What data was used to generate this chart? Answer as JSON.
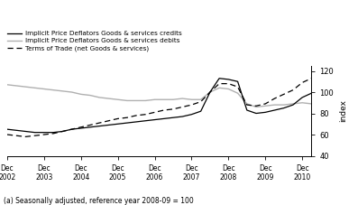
{
  "ylabel": "index",
  "footnote": "(a) Seasonally adjusted, reference year 2008-09 = 100",
  "ylim": [
    40,
    125
  ],
  "yticks": [
    40,
    60,
    80,
    100,
    120
  ],
  "xlabel_years": [
    "Dec\n2002",
    "Dec\n2003",
    "Dec\n2004",
    "Dec\n2005",
    "Dec\n2006",
    "Dec\n2007",
    "Dec\n2008",
    "Dec\n2009",
    "Dec\n2010"
  ],
  "xtick_positions": [
    0,
    4,
    8,
    12,
    16,
    20,
    24,
    28,
    32
  ],
  "credits_color": "#000000",
  "debits_color": "#b0b0b0",
  "tot_color": "#000000",
  "credits_label": "Implicit Price Deflators Goods & services credits",
  "debits_label": "Implicit Price Deflators Goods & services debits",
  "tot_label": "Terms of Trade (net Goods & services)",
  "credits": [
    65,
    64,
    63,
    62,
    62,
    62,
    63,
    65,
    66,
    67,
    68,
    69,
    70,
    71,
    72,
    73,
    74,
    75,
    76,
    77,
    79,
    82,
    100,
    113,
    112,
    110,
    83,
    80,
    81,
    83,
    85,
    88,
    95,
    99
  ],
  "debits": [
    107,
    106,
    105,
    104,
    103,
    102,
    101,
    100,
    98,
    97,
    95,
    94,
    93,
    92,
    92,
    92,
    93,
    93,
    93,
    94,
    93,
    93,
    100,
    104,
    103,
    99,
    89,
    86,
    87,
    88,
    88,
    89,
    90,
    89
  ],
  "tot": [
    60,
    59,
    58,
    59,
    60,
    61,
    63,
    65,
    67,
    69,
    71,
    73,
    75,
    76,
    78,
    79,
    81,
    83,
    84,
    86,
    88,
    91,
    100,
    108,
    108,
    105,
    88,
    87,
    89,
    94,
    98,
    102,
    109,
    113
  ]
}
